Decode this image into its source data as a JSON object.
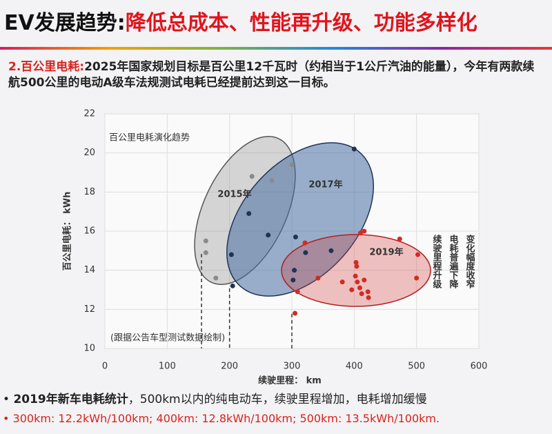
{
  "slide": {
    "title_lead": "EV发展趋势:",
    "title_main": "降低总成本、性能再升级、功能多样化",
    "point_label": "2.百公里电耗:",
    "point_text": "2025年国家规划目标是百公里12千瓦时（约相当于1公斤汽油的能量），今年有两款续航500公里的电动A级车法规测试电耗已经提前达到这一目标。",
    "bullets": [
      {
        "bold": "2019年新车电耗统计",
        "text": "，500km以内的纯电动车，续驶里程增加，电耗增加缓慢"
      },
      {
        "text": "300km: 12.2kWh/100km; 400km: 12.8kWh/100km; 500km: 13.5kWh/100km."
      }
    ]
  },
  "chart_data": {
    "type": "scatter",
    "title": "百公里电耗演化趋势",
    "note": "(跟据公告车型测试数据绘制)",
    "x_label": "续驶里程： km",
    "y_label": "百公里电耗： kWh",
    "side_notes": [
      "续驶里程升级",
      "电耗普遍下降",
      "变化幅度收窄"
    ],
    "xlim": [
      0,
      600
    ],
    "xticks": [
      0,
      100,
      200,
      300,
      400,
      500,
      600
    ],
    "ylim": [
      10,
      22
    ],
    "yticks": [
      10,
      12,
      14,
      16,
      18,
      20,
      22
    ],
    "grid": true,
    "series": [
      {
        "name": "2015年",
        "color": "#8a8a8a",
        "range_marker": 155,
        "x": [
          162,
          162,
          178,
          236,
          268,
          300
        ],
        "values": [
          15.5,
          14.9,
          13.6,
          18.8,
          18.6,
          19.4
        ]
      },
      {
        "name": "2017年",
        "color": "#1f3357",
        "range_marker": 200,
        "x": [
          203,
          205,
          231,
          262,
          306,
          304,
          302,
          322,
          363,
          400
        ],
        "values": [
          14.8,
          13.2,
          16.9,
          15.8,
          15.7,
          14.0,
          13.5,
          14.9,
          15.0,
          20.2
        ]
      },
      {
        "name": "2019年",
        "color": "#d42a24",
        "range_marker": 300,
        "x": [
          309,
          305,
          321,
          342,
          381,
          403,
          404,
          410,
          416,
          402,
          405,
          409,
          412,
          416,
          422,
          423,
          473,
          502,
          500,
          396
        ],
        "values": [
          12.9,
          11.8,
          15.4,
          13.6,
          13.4,
          14.4,
          14.2,
          15.9,
          16.0,
          13.7,
          13.4,
          13.1,
          12.8,
          13.5,
          12.9,
          12.6,
          15.6,
          14.8,
          13.6,
          13.0
        ]
      }
    ]
  }
}
